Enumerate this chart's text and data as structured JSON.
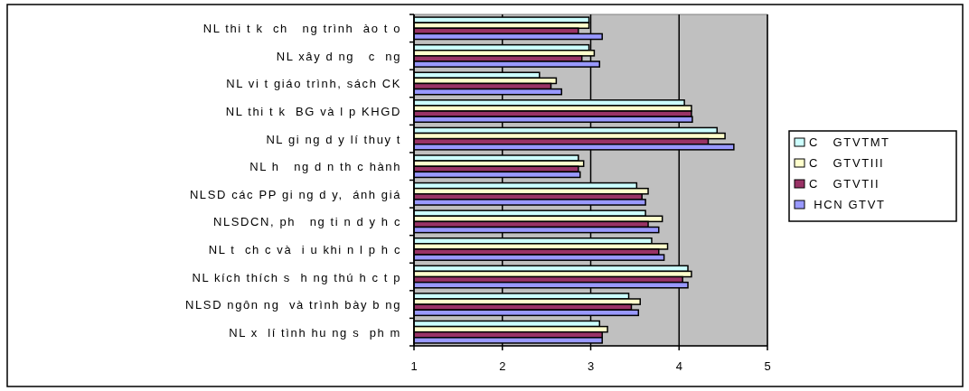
{
  "chart_data": {
    "type": "bar",
    "orientation": "horizontal",
    "categories": [
      "NL thi t k  ch   ng trình  ào t o",
      "NL xây d ng   c  ng",
      "NL vi t giáo trình, sách CK",
      "NL thi t k  BG và l p KHGD",
      "NL gi ng d y lí thuy t",
      "NL h   ng d n th c hành",
      "NLSD các PP gi ng d y,  ánh giá",
      "NLSDCN, ph   ng ti n d y h c",
      "NL t  ch c và  i u khi n l p h c",
      "NL kích thích s  h ng thú h c t p",
      "NLSD ngôn ng  và trình bày b ng",
      "NL x  lí tình hu ng s  ph m"
    ],
    "series": [
      {
        "name": "C   GTVTMT",
        "color": "#ccffff",
        "values": [
          2.98,
          2.98,
          2.42,
          4.06,
          4.43,
          2.86,
          3.52,
          3.62,
          3.69,
          4.1,
          3.43,
          3.1
        ]
      },
      {
        "name": "C   GTVTIII",
        "color": "#ffffcc",
        "values": [
          2.98,
          3.04,
          2.61,
          4.14,
          4.52,
          2.92,
          3.65,
          3.81,
          3.87,
          4.14,
          3.56,
          3.19
        ]
      },
      {
        "name": "C   GTVTII",
        "color": "#993366",
        "values": [
          2.86,
          2.9,
          2.55,
          4.14,
          4.33,
          2.86,
          3.58,
          3.65,
          3.77,
          4.04,
          3.46,
          3.13
        ]
      },
      {
        "name": " HCN GTVT",
        "color": "#9999ff",
        "values": [
          3.13,
          3.1,
          2.67,
          4.15,
          4.62,
          2.88,
          3.62,
          3.77,
          3.83,
          4.1,
          3.54,
          3.13
        ]
      }
    ],
    "xlim": [
      1,
      5
    ],
    "xticks": [
      1,
      2,
      3,
      4,
      5
    ],
    "grid": "x",
    "legend": "right"
  }
}
